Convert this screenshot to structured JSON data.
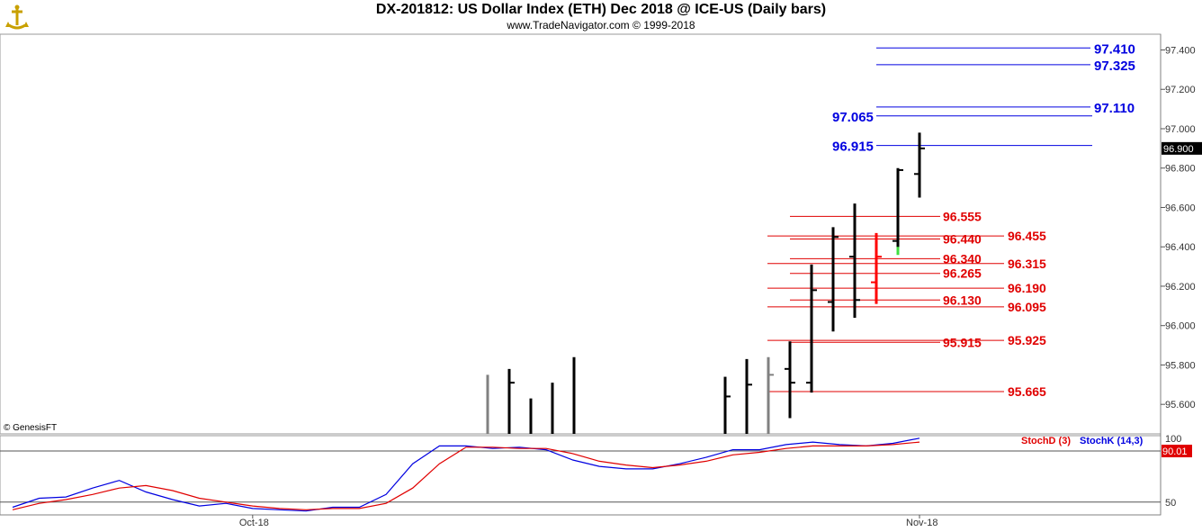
{
  "header": {
    "title": "DX-201812:  US Dollar Index (ETH) Dec 2018 @ ICE-US  (Daily bars)",
    "subtitle": "www.TradeNavigator.com © 1999-2018"
  },
  "copyright": "© GenesisFT",
  "colors": {
    "up_bar": "#000000",
    "gray_bar": "#808080",
    "red_bar": "#ff0000",
    "blue_level": "#0000e0",
    "red_level": "#e00000",
    "stochK": "#0000e0",
    "stochD": "#e00000"
  },
  "chart_data": [
    {
      "type": "ohlc",
      "title": "DX-201812:  US Dollar Index (ETH) Dec 2018 @ ICE-US  (Daily bars)",
      "ylim": [
        95.45,
        97.48
      ],
      "y_ticks": [
        "97.400",
        "97.200",
        "97.000",
        "96.800",
        "96.600",
        "96.400",
        "96.200",
        "96.000",
        "95.800",
        "95.600"
      ],
      "y_tick_values": [
        97.4,
        97.2,
        97.0,
        96.8,
        96.6,
        96.4,
        96.2,
        96.0,
        95.8,
        95.6
      ],
      "last_price": "96.900",
      "x_labels": [
        {
          "label": "Oct-18",
          "bar": 9
        },
        {
          "label": "Nov-18",
          "bar": 34
        }
      ],
      "bars": [
        {
          "i": 0,
          "h": 95.75,
          "l": 95.45,
          "color": "gray"
        },
        {
          "i": 1,
          "h": 95.78,
          "l": 95.45,
          "c": 95.71,
          "color": "black"
        },
        {
          "i": 2,
          "h": 95.63,
          "l": 95.45,
          "color": "black"
        },
        {
          "i": 3,
          "h": 95.71,
          "l": 95.45,
          "color": "black"
        },
        {
          "i": 4,
          "h": 95.84,
          "l": 95.45,
          "color": "black"
        },
        {
          "i": 11,
          "h": 95.74,
          "l": 95.45,
          "c": 95.64,
          "color": "black"
        },
        {
          "i": 12,
          "h": 95.83,
          "l": 95.45,
          "c": 95.7,
          "color": "black"
        },
        {
          "i": 13,
          "h": 95.84,
          "l": 95.45,
          "c": 95.75,
          "color": "gray"
        },
        {
          "i": 14,
          "o": 95.78,
          "h": 95.92,
          "l": 95.53,
          "c": 95.71,
          "color": "black"
        },
        {
          "i": 15,
          "o": 95.71,
          "h": 96.31,
          "l": 95.66,
          "c": 96.18,
          "color": "black"
        },
        {
          "i": 16,
          "o": 96.12,
          "h": 96.5,
          "l": 95.97,
          "c": 96.45,
          "color": "black"
        },
        {
          "i": 17,
          "o": 96.35,
          "h": 96.62,
          "l": 96.04,
          "c": 96.13,
          "color": "black"
        },
        {
          "i": 18,
          "o": 96.22,
          "h": 96.47,
          "l": 96.11,
          "c": 96.35,
          "color": "red"
        },
        {
          "i": 19,
          "o": 96.43,
          "h": 96.8,
          "l": 96.36,
          "c": 96.79,
          "color": "black"
        },
        {
          "i": 20,
          "o": 96.77,
          "h": 96.98,
          "l": 96.65,
          "c": 96.9,
          "color": "black"
        }
      ],
      "blue_levels": [
        {
          "value": 97.41,
          "label": "97.410",
          "side": "right"
        },
        {
          "value": 97.325,
          "label": "97.325",
          "side": "right"
        },
        {
          "value": 97.11,
          "label": "97.110",
          "side": "right"
        },
        {
          "value": 97.065,
          "label": "97.065",
          "side": "left"
        },
        {
          "value": 96.915,
          "label": "96.915",
          "side": "left"
        }
      ],
      "red_levels_a": [
        {
          "value": 96.555,
          "label": "96.555"
        },
        {
          "value": 96.44,
          "label": "96.440"
        },
        {
          "value": 96.34,
          "label": "96.340"
        },
        {
          "value": 96.265,
          "label": "96.265"
        },
        {
          "value": 96.13,
          "label": "96.130"
        },
        {
          "value": 95.915,
          "label": "95.915"
        }
      ],
      "red_levels_b": [
        {
          "value": 96.455,
          "label": "96.455"
        },
        {
          "value": 96.315,
          "label": "96.315"
        },
        {
          "value": 96.19,
          "label": "96.190"
        },
        {
          "value": 96.095,
          "label": "96.095"
        },
        {
          "value": 95.925,
          "label": "95.925"
        },
        {
          "value": 95.665,
          "label": "95.665"
        }
      ]
    },
    {
      "type": "line",
      "title": "",
      "ylim": [
        40,
        102
      ],
      "y_ticks": [
        "100",
        "50"
      ],
      "y_tick_values": [
        100,
        50
      ],
      "hlines": [
        90,
        50
      ],
      "last_value": "90.01",
      "legend": [
        "StochD (3)",
        "StochK (14,3)"
      ],
      "series": [
        {
          "name": "StochK (14,3)",
          "color": "blue",
          "x": [
            0,
            1,
            2,
            3,
            4,
            5,
            6,
            7,
            8,
            9,
            10,
            11,
            12,
            13,
            14,
            15,
            16,
            17,
            18,
            19,
            20,
            21,
            22,
            23,
            24,
            25,
            26,
            27,
            28,
            29,
            30,
            31,
            32,
            33,
            34
          ],
          "values": [
            46,
            53,
            54,
            61,
            67,
            58,
            52,
            47,
            49,
            45,
            44,
            43,
            46,
            46,
            56,
            80,
            94,
            94,
            92,
            93,
            91,
            83,
            78,
            76,
            76,
            80,
            85,
            91,
            91,
            95,
            97,
            95,
            94,
            96,
            100
          ]
        },
        {
          "name": "StochD (3)",
          "color": "red",
          "x": [
            0,
            1,
            2,
            3,
            4,
            5,
            6,
            7,
            8,
            9,
            10,
            11,
            12,
            13,
            14,
            15,
            16,
            17,
            18,
            19,
            20,
            21,
            22,
            23,
            24,
            25,
            26,
            27,
            28,
            29,
            30,
            31,
            32,
            33,
            34
          ],
          "values": [
            44,
            49,
            52,
            56,
            61,
            63,
            59,
            53,
            50,
            47,
            45,
            44,
            45,
            45,
            49,
            61,
            80,
            93,
            93,
            92,
            92,
            88,
            82,
            79,
            77,
            79,
            82,
            87,
            89,
            92,
            94,
            94,
            94,
            95,
            97
          ]
        }
      ]
    }
  ]
}
